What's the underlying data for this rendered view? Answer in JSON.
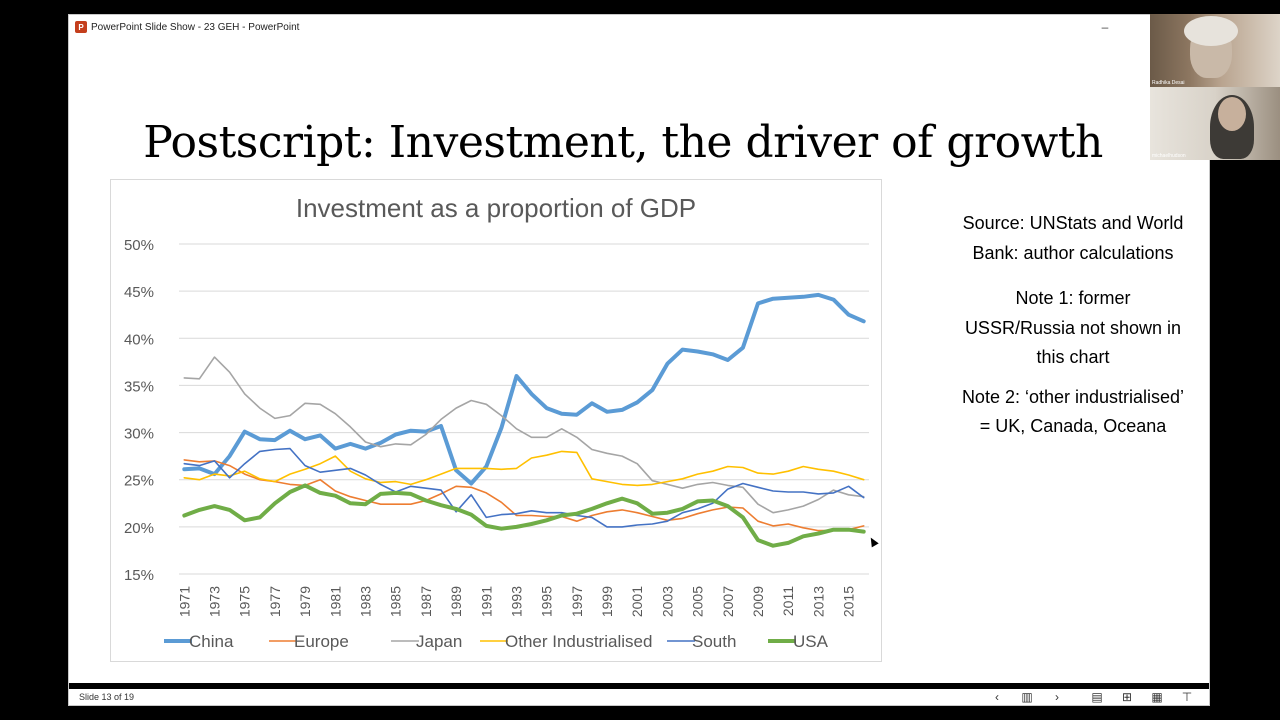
{
  "window": {
    "title": "PowerPoint Slide Show  -  23 GEH - PowerPoint",
    "app_icon": "powerpoint-icon",
    "minimize_glyph": "–"
  },
  "slide": {
    "title": "Postscript: Investment, the driver of growth",
    "notes": [
      "Source: UNStats and World Bank: author calculations",
      "Note 1: former USSR/Russia not shown in this chart",
      "Note 2: ‘other industrialised’ = UK, Canada, Oceana"
    ]
  },
  "status": {
    "slide_counter": "Slide 13 of 19",
    "controls": [
      "previous-icon",
      "slide-grid-icon",
      "next-icon",
      "normal-view-icon",
      "slide-sorter-icon",
      "reading-view-icon",
      "slideshow-icon"
    ]
  },
  "video": {
    "participants": [
      {
        "name": "Radhika Desai"
      },
      {
        "name": "michaelhudson"
      }
    ]
  },
  "chart_data": {
    "type": "line",
    "title": "Investment as a proportion of GDP",
    "ylim": [
      0.15,
      0.5
    ],
    "y_ticks": [
      "15%",
      "20%",
      "25%",
      "30%",
      "35%",
      "40%",
      "45%",
      "50%"
    ],
    "x_tick_labels": [
      "1971",
      "1973",
      "1975",
      "1977",
      "1979",
      "1981",
      "1983",
      "1985",
      "1987",
      "1989",
      "1991",
      "1993",
      "1995",
      "1997",
      "1999",
      "2001",
      "2003",
      "2005",
      "2007",
      "2009",
      "2011",
      "2013",
      "2015"
    ],
    "x": [
      1971,
      1972,
      1973,
      1974,
      1975,
      1976,
      1977,
      1978,
      1979,
      1980,
      1981,
      1982,
      1983,
      1984,
      1985,
      1986,
      1987,
      1988,
      1989,
      1990,
      1991,
      1992,
      1993,
      1994,
      1995,
      1996,
      1997,
      1998,
      1999,
      2000,
      2001,
      2002,
      2003,
      2004,
      2005,
      2006,
      2007,
      2008,
      2009,
      2010,
      2011,
      2012,
      2013,
      2014,
      2015,
      2016
    ],
    "grid": true,
    "legend": "bottom",
    "series": [
      {
        "name": "China",
        "color": "#5b9bd5",
        "width": 4,
        "values": [
          0.261,
          0.262,
          0.256,
          0.275,
          0.301,
          0.293,
          0.292,
          0.302,
          0.293,
          0.297,
          0.283,
          0.288,
          0.283,
          0.289,
          0.298,
          0.302,
          0.301,
          0.307,
          0.26,
          0.246,
          0.264,
          0.305,
          0.36,
          0.341,
          0.326,
          0.32,
          0.319,
          0.331,
          0.322,
          0.324,
          0.332,
          0.345,
          0.373,
          0.388,
          0.386,
          0.383,
          0.377,
          0.39,
          0.437,
          0.442,
          0.443,
          0.444,
          0.446,
          0.441,
          0.425,
          0.418
        ]
      },
      {
        "name": "Europe",
        "color": "#ed7d31",
        "width": 1.6,
        "values": [
          0.271,
          0.269,
          0.27,
          0.265,
          0.256,
          0.25,
          0.248,
          0.245,
          0.244,
          0.25,
          0.238,
          0.232,
          0.228,
          0.224,
          0.224,
          0.224,
          0.228,
          0.235,
          0.243,
          0.242,
          0.236,
          0.226,
          0.212,
          0.212,
          0.211,
          0.211,
          0.206,
          0.212,
          0.216,
          0.218,
          0.215,
          0.211,
          0.207,
          0.209,
          0.214,
          0.218,
          0.221,
          0.22,
          0.206,
          0.201,
          0.203,
          0.199,
          0.196,
          0.196,
          0.197,
          0.201
        ]
      },
      {
        "name": "Japan",
        "color": "#a5a5a5",
        "width": 1.6,
        "values": [
          0.358,
          0.357,
          0.38,
          0.364,
          0.341,
          0.326,
          0.315,
          0.318,
          0.331,
          0.33,
          0.32,
          0.306,
          0.29,
          0.285,
          0.288,
          0.287,
          0.298,
          0.314,
          0.326,
          0.334,
          0.33,
          0.318,
          0.304,
          0.295,
          0.295,
          0.304,
          0.295,
          0.282,
          0.278,
          0.275,
          0.267,
          0.249,
          0.245,
          0.241,
          0.245,
          0.247,
          0.244,
          0.242,
          0.224,
          0.215,
          0.218,
          0.222,
          0.229,
          0.239,
          0.234,
          0.232
        ]
      },
      {
        "name": "Other Industrialised",
        "color": "#ffc000",
        "width": 1.6,
        "values": [
          0.252,
          0.25,
          0.256,
          0.254,
          0.259,
          0.251,
          0.248,
          0.256,
          0.261,
          0.267,
          0.275,
          0.259,
          0.251,
          0.247,
          0.248,
          0.245,
          0.25,
          0.256,
          0.262,
          0.262,
          0.262,
          0.261,
          0.262,
          0.273,
          0.276,
          0.28,
          0.279,
          0.251,
          0.248,
          0.245,
          0.244,
          0.245,
          0.248,
          0.251,
          0.256,
          0.259,
          0.264,
          0.263,
          0.257,
          0.256,
          0.259,
          0.264,
          0.261,
          0.259,
          0.255,
          0.25
        ]
      },
      {
        "name": "South",
        "color": "#4472c4",
        "width": 1.6,
        "values": [
          0.267,
          0.265,
          0.27,
          0.252,
          0.267,
          0.28,
          0.282,
          0.283,
          0.265,
          0.258,
          0.26,
          0.262,
          0.255,
          0.245,
          0.237,
          0.243,
          0.241,
          0.239,
          0.216,
          0.234,
          0.21,
          0.213,
          0.214,
          0.217,
          0.215,
          0.215,
          0.212,
          0.21,
          0.2,
          0.2,
          0.202,
          0.203,
          0.206,
          0.215,
          0.219,
          0.225,
          0.24,
          0.246,
          0.242,
          0.238,
          0.237,
          0.237,
          0.235,
          0.236,
          0.243,
          0.231
        ]
      },
      {
        "name": "USA",
        "color": "#70ad47",
        "width": 4,
        "values": [
          0.212,
          0.218,
          0.222,
          0.218,
          0.207,
          0.21,
          0.225,
          0.237,
          0.244,
          0.236,
          0.233,
          0.225,
          0.224,
          0.235,
          0.236,
          0.235,
          0.228,
          0.223,
          0.219,
          0.213,
          0.201,
          0.198,
          0.2,
          0.203,
          0.207,
          0.212,
          0.214,
          0.219,
          0.225,
          0.23,
          0.225,
          0.214,
          0.215,
          0.219,
          0.227,
          0.228,
          0.222,
          0.21,
          0.186,
          0.18,
          0.183,
          0.19,
          0.193,
          0.197,
          0.197,
          0.195
        ]
      }
    ]
  }
}
